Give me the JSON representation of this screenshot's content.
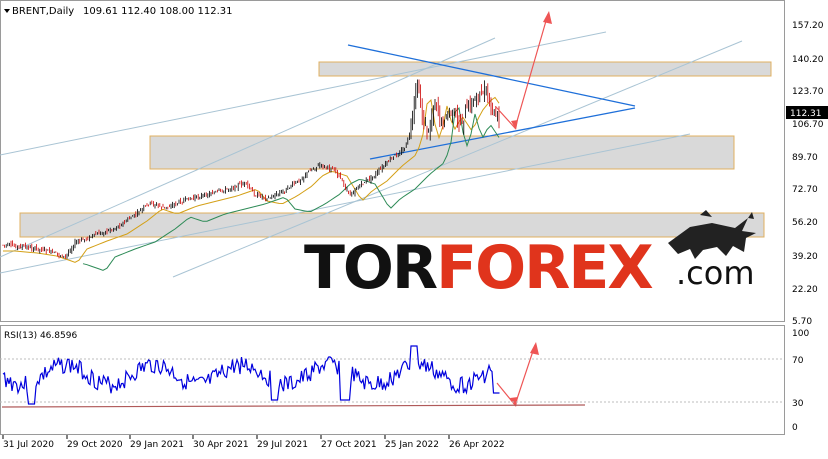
{
  "header": {
    "symbol": "BRENT,Daily",
    "ohlc": "109.61 112.40 108.00 112.31"
  },
  "price_axis": {
    "ticks": [
      "157.20",
      "140.20",
      "123.70",
      "106.70",
      "89.70",
      "72.70",
      "56.20",
      "39.20",
      "22.20",
      "5.70"
    ],
    "current_price": "112.31"
  },
  "rsi": {
    "label": "RSI(13) 46.8596",
    "ticks": [
      "100",
      "70",
      "30",
      "0"
    ]
  },
  "time_axis": {
    "ticks": [
      "31 Jul 2020",
      "29 Oct 2020",
      "29 Jan 2021",
      "30 Apr 2021",
      "29 Jul 2021",
      "27 Oct 2021",
      "25 Jan 2022",
      "26 Apr 2022"
    ]
  },
  "watermark": {
    "text_dark_1": "TOR",
    "text_red": "FOREX",
    "text_dark_2": ".com"
  },
  "colors": {
    "bull_candle": "#000000",
    "bear_candle": "#cc0000",
    "ma_fast": "#d4a017",
    "ma_slow": "#2e8b57",
    "trend_blue": "#1e6fd9",
    "channel": "#a9c4d4",
    "arrow_red": "#ee5555",
    "zone_fill": "#d9d9d9",
    "zone_border": "#e0b060",
    "rsi_line": "#0000dd",
    "brand_red": "#e0341c",
    "brand_dark": "#111111"
  }
}
